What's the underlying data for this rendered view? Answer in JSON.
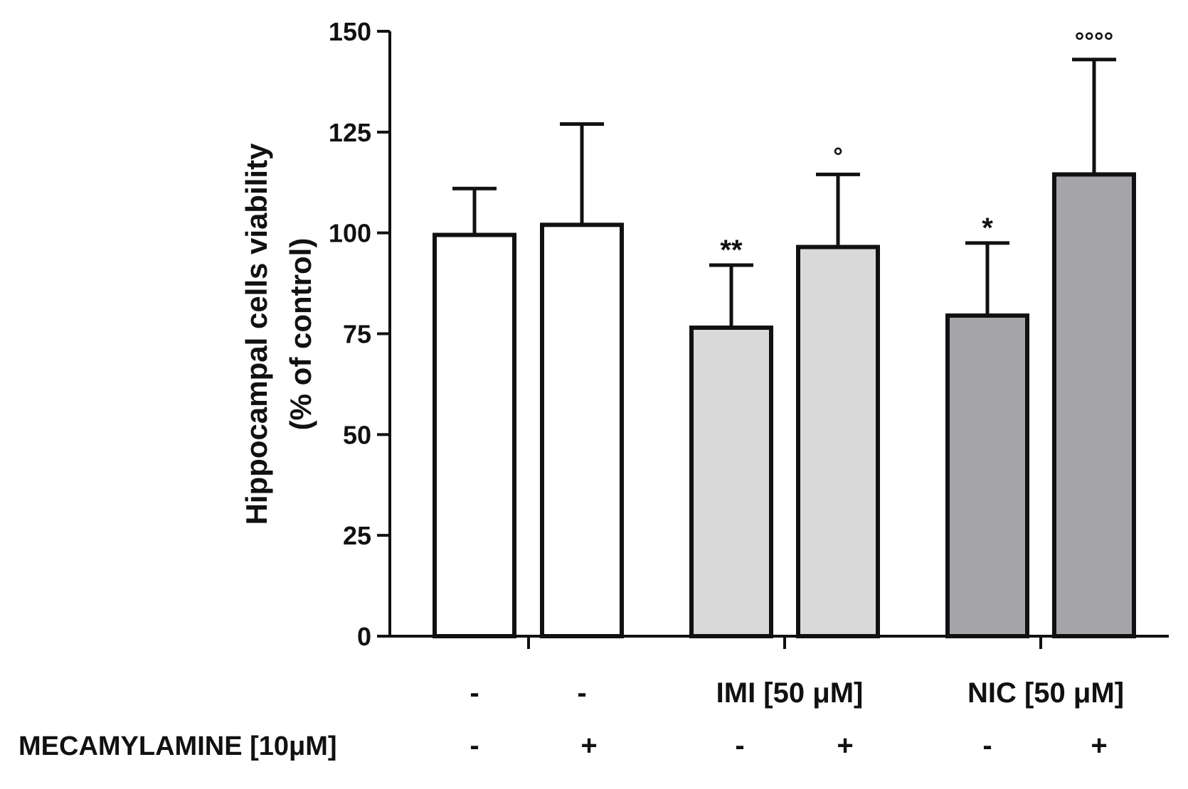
{
  "chart_data": {
    "type": "bar",
    "ylabel_line1": "Hippocampal cells viability",
    "ylabel_line2": "(% of control)",
    "ylim": [
      0,
      150
    ],
    "yticks": [
      "0",
      "25",
      "50",
      "75",
      "100",
      "125",
      "150"
    ],
    "bars": [
      {
        "value": 99.5,
        "error": 11.5,
        "fill": "#ffffff",
        "annotation": ""
      },
      {
        "value": 102,
        "error": 25,
        "fill": "#ffffff",
        "annotation": ""
      },
      {
        "value": 76.5,
        "error": 15.5,
        "fill": "#d9d9d9",
        "annotation": "**"
      },
      {
        "value": 96.5,
        "error": 18,
        "fill": "#d9d9d9",
        "annotation": "°"
      },
      {
        "value": 79.5,
        "error": 18,
        "fill": "#a6a6aa",
        "annotation": "*"
      },
      {
        "value": 114.5,
        "error": 28.5,
        "fill": "#a6a6aa",
        "annotation": "°°°°"
      }
    ],
    "treatment_labels": [
      "-",
      "-",
      "IMI [50 μM]",
      "NIC [50 μM]"
    ],
    "mecamylamine_label": "MECAMYLAMINE [10μM]",
    "mecamylamine_values": [
      "-",
      "+",
      "-",
      "+",
      "-",
      "+"
    ],
    "grid": false
  }
}
